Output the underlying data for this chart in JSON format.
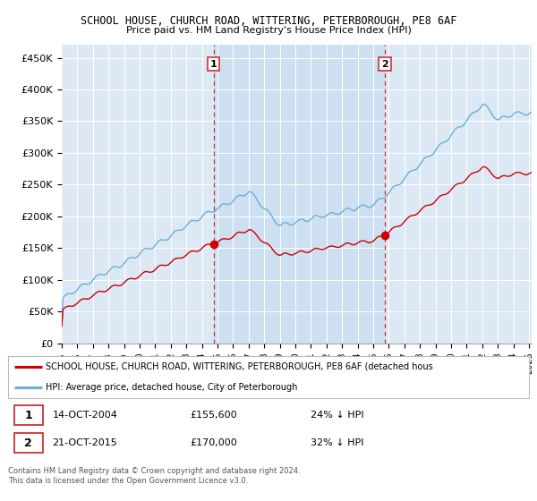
{
  "title1": "SCHOOL HOUSE, CHURCH ROAD, WITTERING, PETERBOROUGH, PE8 6AF",
  "title2": "Price paid vs. HM Land Registry's House Price Index (HPI)",
  "background_color": "#dce9f5",
  "shaded_color": "#c8ddf0",
  "ytick_labels": [
    "£0",
    "£50K",
    "£100K",
    "£150K",
    "£200K",
    "£250K",
    "£300K",
    "£350K",
    "£400K",
    "£450K"
  ],
  "yticks": [
    0,
    50000,
    100000,
    150000,
    200000,
    250000,
    300000,
    350000,
    400000,
    450000
  ],
  "sale1_x_idx": 117,
  "sale1_y": 155600,
  "sale2_x_idx": 249,
  "sale2_y": 170000,
  "hpi_color": "#6baed6",
  "price_color": "#cc0000",
  "vline_color": "#cc3333",
  "legend_label1": "SCHOOL HOUSE, CHURCH ROAD, WITTERING, PETERBOROUGH, PE8 6AF (detached hous",
  "legend_label2": "HPI: Average price, detached house, City of Peterborough",
  "sale1_date": "14-OCT-2004",
  "sale1_price": "£155,600",
  "sale1_note": "24% ↓ HPI",
  "sale2_date": "21-OCT-2015",
  "sale2_price": "£170,000",
  "sale2_note": "32% ↓ HPI",
  "footer1": "Contains HM Land Registry data © Crown copyright and database right 2024.",
  "footer2": "This data is licensed under the Open Government Licence v3.0.",
  "xlim_months": [
    0,
    362
  ],
  "ylim": [
    0,
    470000
  ],
  "start_year": 1995,
  "end_year": 2025
}
